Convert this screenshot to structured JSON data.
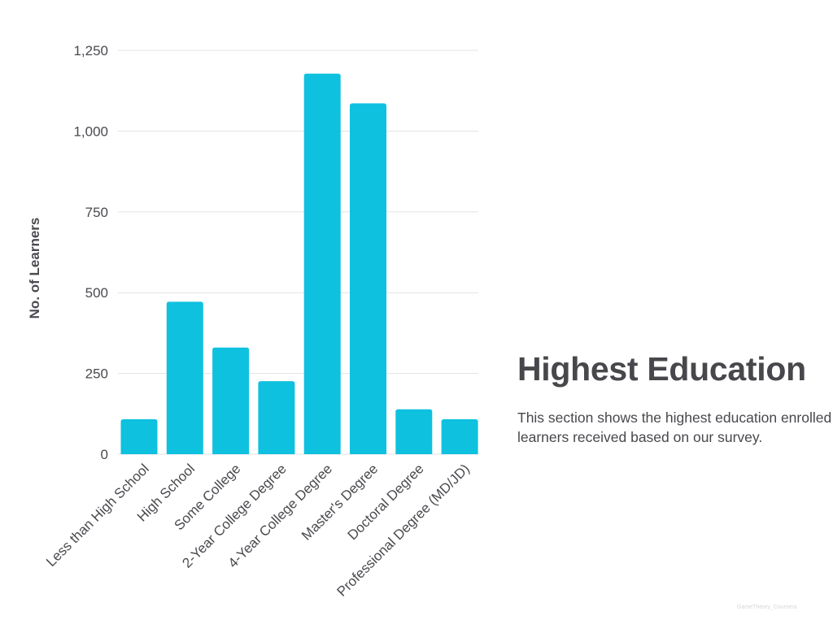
{
  "chart_data": {
    "type": "bar",
    "ylabel": "No. of Learners",
    "xlabel": "",
    "categories": [
      "Less than High School",
      "High School",
      "Some College",
      "2-Year College Degree",
      "4-Year College Degree",
      "Master's Degree",
      "Doctoral Degree",
      "Professional Degree (MD/JD)"
    ],
    "values": [
      108,
      472,
      330,
      226,
      1178,
      1086,
      139,
      108
    ],
    "ylim": [
      0,
      1250
    ],
    "yticks": [
      0,
      250,
      500,
      750,
      1000,
      1250
    ],
    "ytick_labels": [
      "0",
      "250",
      "500",
      "750",
      "1,000",
      "1,250"
    ],
    "grid": true,
    "bar_color": "#0ec1df"
  },
  "side_panel": {
    "title": "Highest Education",
    "description": "This section shows the highest education enrolled learners received based on our survey."
  },
  "watermark": "GameTheory_Coursera"
}
